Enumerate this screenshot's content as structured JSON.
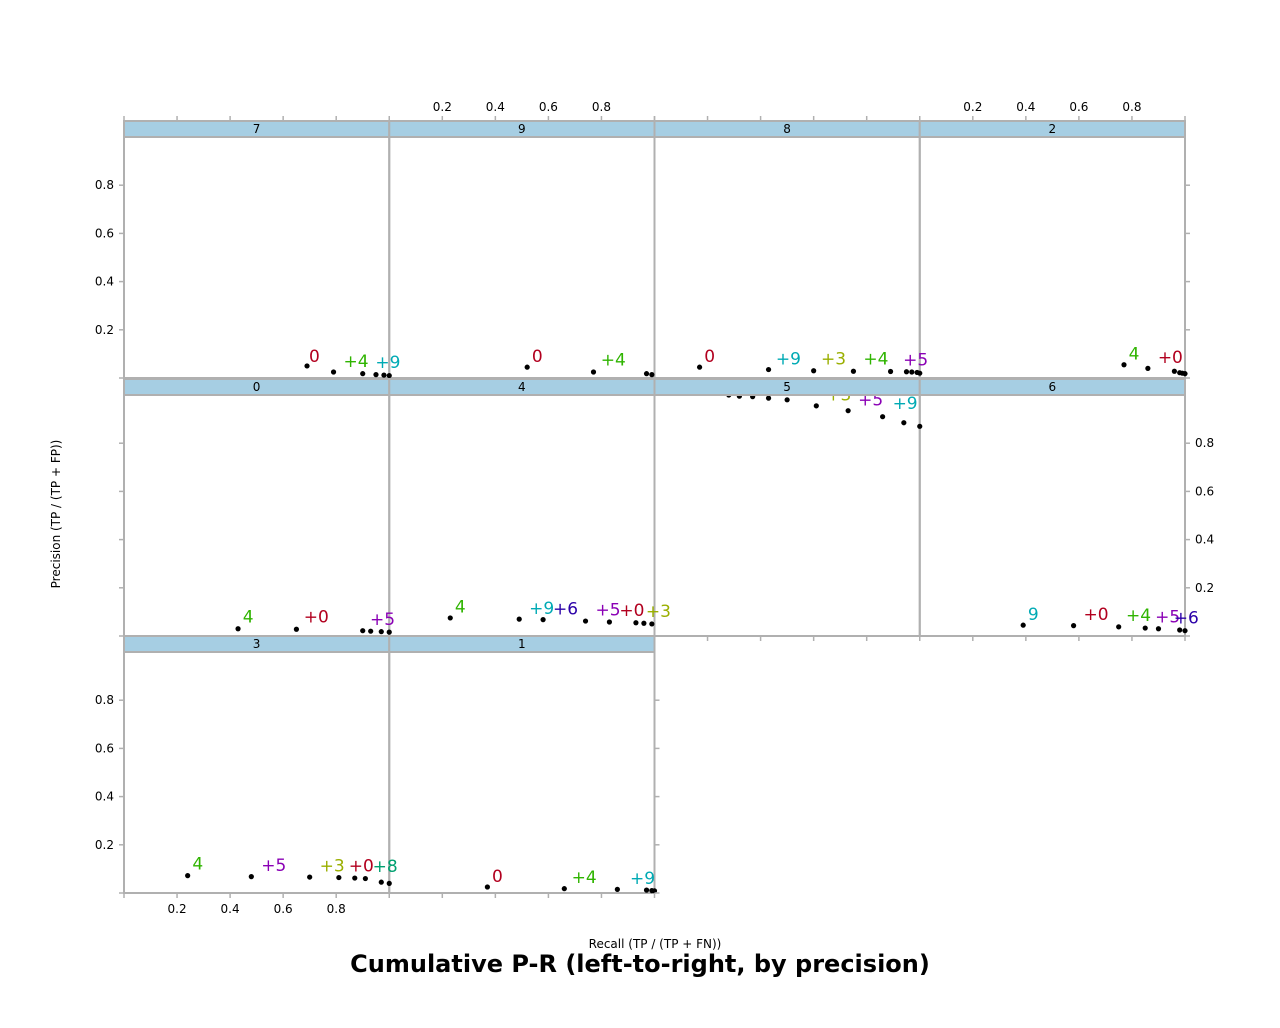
{
  "chart_data": {
    "type": "scatter",
    "title": "Cumulative P-R (left-to-right, by precision)",
    "xlabel": "Recall (TP / (TP + FN))",
    "ylabel": "Precision (TP / (TP + FP))",
    "xlim": [
      0,
      1
    ],
    "ylim": [
      0,
      1
    ],
    "x_ticks": [
      "0.2",
      "0.4",
      "0.6",
      "0.8"
    ],
    "y_ticks": [
      "0.2",
      "0.4",
      "0.6",
      "0.8"
    ],
    "grid": false,
    "colors": {
      "strip": "#a6cee3",
      "frame": "#b0b0b0",
      "c0": "#b2001f",
      "c3": "#9aaf00",
      "c4": "#2fb400",
      "c5": "#8a00b5",
      "c6": "#2b00a8",
      "c8": "#00a070",
      "c9": "#00aab4"
    },
    "panels": [
      {
        "name": "7",
        "row": 0,
        "col": 0,
        "points": [
          [
            0.69,
            0.05
          ],
          [
            0.79,
            0.025
          ],
          [
            0.9,
            0.018
          ],
          [
            0.95,
            0.014
          ],
          [
            0.98,
            0.012
          ],
          [
            1.0,
            0.01
          ]
        ],
        "labels": [
          {
            "text": "0",
            "x": 0.69,
            "y": 0.05,
            "color": "c0"
          },
          {
            "text": "+4",
            "x": 0.82,
            "y": 0.03,
            "color": "c4"
          },
          {
            "text": "+9",
            "x": 0.94,
            "y": 0.025,
            "color": "c9"
          }
        ]
      },
      {
        "name": "9",
        "row": 0,
        "col": 1,
        "points": [
          [
            0.52,
            0.045
          ],
          [
            0.77,
            0.025
          ],
          [
            0.97,
            0.018
          ],
          [
            0.99,
            0.014
          ]
        ],
        "labels": [
          {
            "text": "0",
            "x": 0.53,
            "y": 0.05,
            "color": "c0"
          },
          {
            "text": "+4",
            "x": 0.79,
            "y": 0.035,
            "color": "c4"
          }
        ]
      },
      {
        "name": "8",
        "row": 0,
        "col": 2,
        "points": [
          [
            0.17,
            0.045
          ],
          [
            0.43,
            0.035
          ],
          [
            0.6,
            0.03
          ],
          [
            0.75,
            0.028
          ],
          [
            0.89,
            0.027
          ],
          [
            0.95,
            0.026
          ],
          [
            0.97,
            0.025
          ],
          [
            0.99,
            0.023
          ],
          [
            1.0,
            0.02
          ]
        ],
        "labels": [
          {
            "text": "0",
            "x": 0.18,
            "y": 0.05,
            "color": "c0"
          },
          {
            "text": "+9",
            "x": 0.45,
            "y": 0.04,
            "color": "c9"
          },
          {
            "text": "+3",
            "x": 0.62,
            "y": 0.04,
            "color": "c3"
          },
          {
            "text": "+4",
            "x": 0.78,
            "y": 0.04,
            "color": "c4"
          },
          {
            "text": "+5",
            "x": 0.93,
            "y": 0.035,
            "color": "c5"
          }
        ]
      },
      {
        "name": "2",
        "row": 0,
        "col": 3,
        "points": [
          [
            0.77,
            0.055
          ],
          [
            0.86,
            0.04
          ],
          [
            0.96,
            0.028
          ],
          [
            0.98,
            0.022
          ],
          [
            0.99,
            0.02
          ],
          [
            1.0,
            0.018
          ]
        ],
        "labels": [
          {
            "text": "4",
            "x": 0.78,
            "y": 0.06,
            "color": "c4"
          },
          {
            "text": "+0",
            "x": 0.89,
            "y": 0.045,
            "color": "c0"
          }
        ]
      },
      {
        "name": "0",
        "row": 1,
        "col": 0,
        "points": [
          [
            0.43,
            0.03
          ],
          [
            0.65,
            0.028
          ],
          [
            0.9,
            0.022
          ],
          [
            0.93,
            0.02
          ],
          [
            0.97,
            0.018
          ],
          [
            1.0,
            0.016
          ]
        ],
        "labels": [
          {
            "text": "4",
            "x": 0.44,
            "y": 0.04,
            "color": "c4"
          },
          {
            "text": "+0",
            "x": 0.67,
            "y": 0.04,
            "color": "c0"
          },
          {
            "text": "+5",
            "x": 0.92,
            "y": 0.03,
            "color": "c5"
          }
        ]
      },
      {
        "name": "4",
        "row": 1,
        "col": 1,
        "points": [
          [
            0.23,
            0.075
          ],
          [
            0.49,
            0.07
          ],
          [
            0.58,
            0.068
          ],
          [
            0.74,
            0.062
          ],
          [
            0.83,
            0.058
          ],
          [
            0.93,
            0.055
          ],
          [
            0.96,
            0.053
          ],
          [
            0.99,
            0.05
          ]
        ],
        "labels": [
          {
            "text": "4",
            "x": 0.24,
            "y": 0.08,
            "color": "c4"
          },
          {
            "text": "+9",
            "x": 0.52,
            "y": 0.075,
            "color": "c9"
          },
          {
            "text": "+6",
            "x": 0.61,
            "y": 0.072,
            "color": "c6"
          },
          {
            "text": "+5",
            "x": 0.77,
            "y": 0.068,
            "color": "c5"
          },
          {
            "text": "+0",
            "x": 0.86,
            "y": 0.066,
            "color": "c0"
          },
          {
            "text": "+3",
            "x": 0.96,
            "y": 0.062,
            "color": "c3"
          }
        ]
      },
      {
        "name": "5",
        "row": 1,
        "col": 2,
        "points": [
          [
            0.28,
            1.0
          ],
          [
            0.32,
            0.995
          ],
          [
            0.37,
            0.993
          ],
          [
            0.43,
            0.987
          ],
          [
            0.5,
            0.98
          ],
          [
            0.61,
            0.955
          ],
          [
            0.73,
            0.935
          ],
          [
            0.86,
            0.91
          ],
          [
            0.94,
            0.885
          ],
          [
            1.0,
            0.87
          ]
        ],
        "labels": [
          {
            "text": "+3",
            "x": 0.64,
            "y": 0.96,
            "color": "c3"
          },
          {
            "text": "+5",
            "x": 0.76,
            "y": 0.94,
            "color": "c5"
          },
          {
            "text": "+9",
            "x": 0.89,
            "y": 0.925,
            "color": "c9"
          }
        ]
      },
      {
        "name": "6",
        "row": 1,
        "col": 3,
        "points": [
          [
            0.39,
            0.045
          ],
          [
            0.58,
            0.043
          ],
          [
            0.75,
            0.038
          ],
          [
            0.85,
            0.033
          ],
          [
            0.9,
            0.03
          ],
          [
            0.98,
            0.025
          ],
          [
            1.0,
            0.022
          ]
        ],
        "labels": [
          {
            "text": "9",
            "x": 0.4,
            "y": 0.05,
            "color": "c9"
          },
          {
            "text": "+0",
            "x": 0.61,
            "y": 0.05,
            "color": "c0"
          },
          {
            "text": "+4",
            "x": 0.77,
            "y": 0.045,
            "color": "c4"
          },
          {
            "text": "+5",
            "x": 0.88,
            "y": 0.04,
            "color": "c5"
          },
          {
            "text": "+6",
            "x": 0.95,
            "y": 0.035,
            "color": "c6"
          }
        ]
      },
      {
        "name": "3",
        "row": 2,
        "col": 0,
        "points": [
          [
            0.24,
            0.072
          ],
          [
            0.48,
            0.068
          ],
          [
            0.7,
            0.066
          ],
          [
            0.81,
            0.064
          ],
          [
            0.87,
            0.062
          ],
          [
            0.91,
            0.06
          ],
          [
            0.97,
            0.045
          ],
          [
            1.0,
            0.04
          ]
        ],
        "labels": [
          {
            "text": "4",
            "x": 0.25,
            "y": 0.08,
            "color": "c4"
          },
          {
            "text": "+5",
            "x": 0.51,
            "y": 0.075,
            "color": "c5"
          },
          {
            "text": "+3",
            "x": 0.73,
            "y": 0.072,
            "color": "c3"
          },
          {
            "text": "+0",
            "x": 0.84,
            "y": 0.072,
            "color": "c0"
          },
          {
            "text": "+8",
            "x": 0.93,
            "y": 0.07,
            "color": "c8"
          }
        ]
      },
      {
        "name": "1",
        "row": 2,
        "col": 1,
        "points": [
          [
            0.37,
            0.025
          ],
          [
            0.66,
            0.018
          ],
          [
            0.86,
            0.015
          ],
          [
            0.97,
            0.012
          ],
          [
            0.99,
            0.01
          ],
          [
            1.0,
            0.009
          ]
        ],
        "labels": [
          {
            "text": "0",
            "x": 0.38,
            "y": 0.03,
            "color": "c0"
          },
          {
            "text": "+4",
            "x": 0.68,
            "y": 0.025,
            "color": "c4"
          },
          {
            "text": "+9",
            "x": 0.9,
            "y": 0.02,
            "color": "c9"
          }
        ]
      }
    ]
  }
}
